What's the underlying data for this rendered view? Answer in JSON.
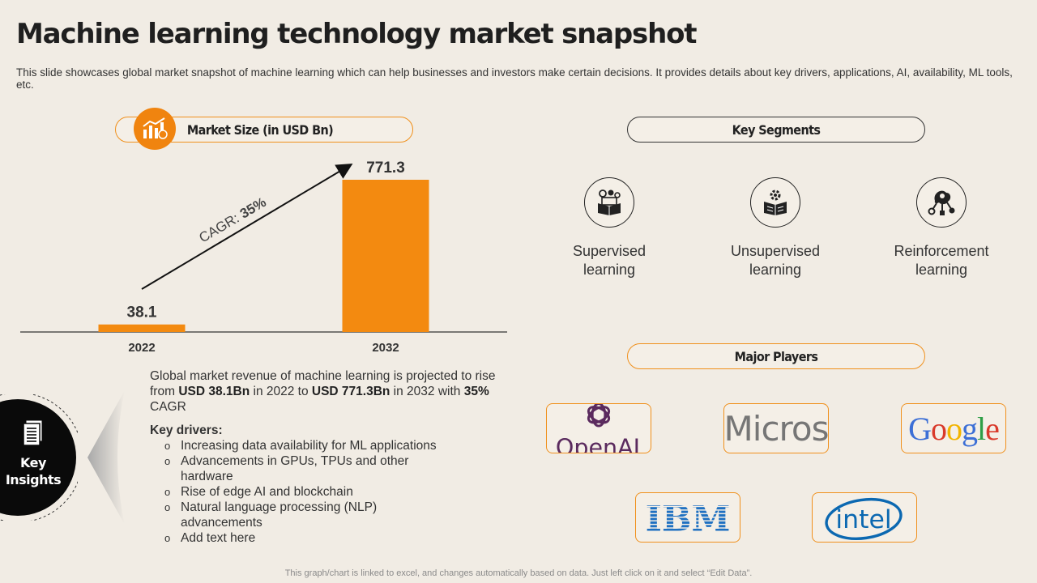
{
  "title": "Machine learning technology market snapshot",
  "subtitle": "This slide showcases global market snapshot of machine learning which can help businesses and investors make certain decisions. It provides details about key drivers, applications, AI, availability,  ML tools, etc.",
  "market_size": {
    "label": "Market Size (in USD Bn)",
    "icon": "bar-chart-icon"
  },
  "chart_data": {
    "type": "bar",
    "title": "Market Size (in USD Bn)",
    "categories": [
      "2022",
      "2032"
    ],
    "values": [
      38.1,
      771.3
    ],
    "ylim": [
      0,
      800
    ],
    "xlabel": "",
    "ylabel": "",
    "annotation": {
      "prefix": "CAGR: ",
      "value": "35%"
    },
    "colors": {
      "bar": "#f38a10",
      "axis": "#333333",
      "label": "#333333"
    }
  },
  "key_segments": {
    "label": "Key Segments",
    "items": [
      {
        "line1": "Supervised",
        "line2": "learning",
        "icon": "book-gears-icon"
      },
      {
        "line1": "Unsupervised",
        "line2": "learning",
        "icon": "book-gear-icon"
      },
      {
        "line1": "Reinforcement",
        "line2": "learning",
        "icon": "brain-network-icon"
      }
    ]
  },
  "major_players": {
    "label": "Major Players",
    "items": [
      {
        "name": "OpenAI",
        "shown": "OpenAI"
      },
      {
        "name": "Microsoft",
        "shown": "Micros"
      },
      {
        "name": "Google",
        "shown": "Google"
      },
      {
        "name": "IBM",
        "shown": "IBM"
      },
      {
        "name": "intel",
        "shown": "intel"
      }
    ]
  },
  "insights": {
    "badge_line1": "Key",
    "badge_line2": "Insights",
    "summary_pre": "Global market revenue  of machine learning is projected to rise from ",
    "summary_v1": "USD 38.1Bn",
    "summary_mid": " in 2022 to ",
    "summary_v2": "USD 771.3Bn",
    "summary_mid2": " in 2032 with ",
    "summary_v3": "35%",
    "summary_post": " CAGR",
    "drivers_title": "Key drivers:",
    "drivers": [
      "Increasing data availability for ML applications",
      "Advancements in GPUs, TPUs and other hardware",
      "Rise of edge AI and blockchain",
      "Natural language processing (NLP) advancements",
      "Add text here"
    ]
  },
  "footer": "This graph/chart is linked to excel,  and changes automatically based on data. Just left click on it and select “Edit Data”.",
  "colors": {
    "accent": "#f0840f",
    "background": "#f1ece4",
    "ibm_blue": "#1f70c1",
    "intel_blue": "#0b68b1"
  }
}
